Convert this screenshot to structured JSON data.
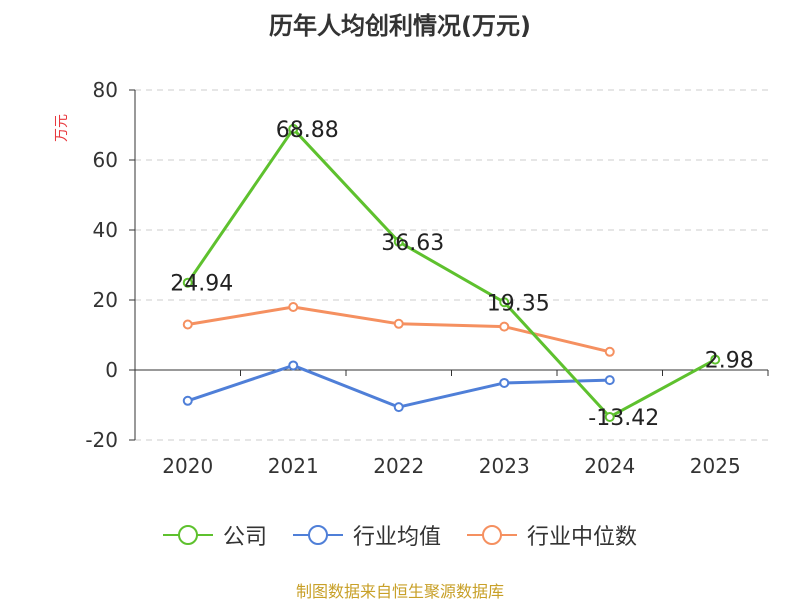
{
  "chart_data": {
    "type": "line",
    "title": "历年人均创利情况(万元)",
    "ylabel": "万元",
    "xlabel": "",
    "categories": [
      "2020",
      "2021",
      "2022",
      "2023",
      "2024",
      "2025"
    ],
    "ylim": [
      -20,
      80
    ],
    "yticks": [
      80,
      60,
      40,
      20,
      0,
      -20
    ],
    "grid": true,
    "legend_position": "bottom",
    "series": [
      {
        "name": "公司",
        "color": "#5ec12e",
        "values": [
          24.94,
          68.88,
          36.63,
          19.35,
          -13.42,
          2.98
        ],
        "labels": [
          "24.94",
          "68.88",
          "36.63",
          "19.35",
          "-13.42",
          "2.98"
        ]
      },
      {
        "name": "行业均值",
        "color": "#4f7fd8",
        "values": [
          -8.8,
          1.3,
          -10.6,
          -3.7,
          -2.9,
          null
        ]
      },
      {
        "name": "行业中位数",
        "color": "#f59060",
        "values": [
          13.0,
          18.0,
          13.2,
          12.4,
          5.2,
          null
        ]
      }
    ]
  },
  "source": "制图数据来自恒生聚源数据库"
}
